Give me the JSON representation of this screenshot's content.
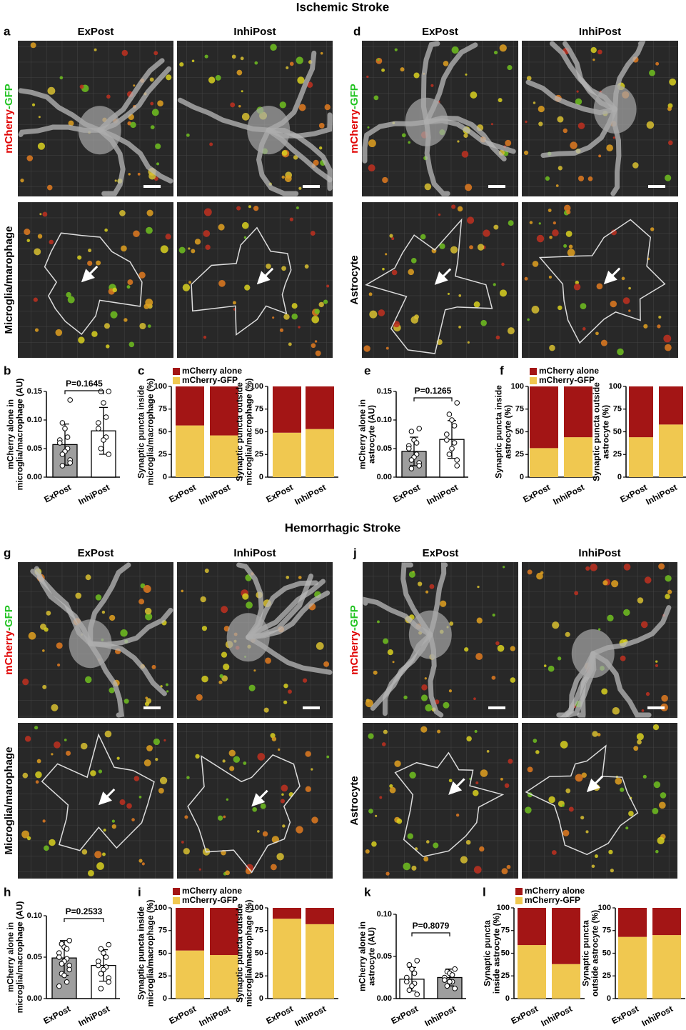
{
  "titles": [
    "Ischemic Stroke",
    "Hemorrhagic Stroke"
  ],
  "image_panels": [
    {
      "panel": "a",
      "columns": [
        "ExPost",
        "InhiPost"
      ],
      "rows": [
        [
          "mCherry",
          "-GFP"
        ],
        [
          "Microglia/marophage"
        ]
      ]
    },
    {
      "panel": "d",
      "columns": [
        "ExPost",
        "InhiPost"
      ],
      "rows": [
        [
          "mCherry",
          "-GFP"
        ],
        [
          "Astrocyte"
        ]
      ]
    },
    {
      "panel": "g",
      "columns": [
        "ExPost",
        "InhiPost"
      ],
      "rows": [
        [
          "mCherry",
          "-GFP"
        ],
        [
          "Microglia/marophage"
        ]
      ]
    },
    {
      "panel": "j",
      "columns": [
        "ExPost",
        "InhiPost"
      ],
      "rows": [
        [
          "mCherry",
          "-GFP"
        ],
        [
          "Astrocyte"
        ]
      ]
    }
  ],
  "chart_data": [
    {
      "type": "dot_bar",
      "panel": "b",
      "ylabel": [
        "mCherry alone in",
        "microglia/macrophage (AU)"
      ],
      "categories": [
        "ExPost",
        "InhiPost"
      ],
      "values": [
        0.057,
        0.081
      ],
      "errors": [
        0.036,
        0.041
      ],
      "colors": [
        "#9e9e9e",
        "#ffffff"
      ],
      "points": [
        [
          0.135,
          0.095,
          0.085,
          0.07,
          0.065,
          0.06,
          0.05,
          0.045,
          0.04,
          0.03,
          0.025,
          0.02
        ],
        [
          0.15,
          0.15,
          0.13,
          0.105,
          0.095,
          0.085,
          0.07,
          0.065,
          0.05,
          0.04
        ]
      ],
      "ylim": [
        0,
        0.15
      ],
      "yticks": [
        {
          "value": 0,
          "label": "0.00"
        },
        0.05,
        {
          "value": 0.1,
          "label": "0.10"
        },
        0.15
      ],
      "annotation": "P=0.1645"
    },
    {
      "type": "stacked_bar",
      "panel": "c",
      "ylabel": [
        "Synaptic puncta inside",
        "microglia/macrophage (%)"
      ],
      "categories": [
        "ExPost",
        "InhiPost"
      ],
      "series": [
        {
          "name": "mCherry alone",
          "color": "#a31515",
          "values": [
            43,
            54
          ]
        },
        {
          "name": "mCherry-GFP",
          "color": "#f0c850",
          "values": [
            57,
            46
          ]
        }
      ],
      "ylim": [
        0,
        100
      ],
      "yticks": [
        0,
        25,
        50,
        75,
        100
      ]
    },
    {
      "type": "stacked_bar",
      "ylabel": [
        "Synaptic puncta outside",
        "microglia/macrophage (%)"
      ],
      "categories": [
        "ExPost",
        "InhiPost"
      ],
      "series": [
        {
          "color": "#a31515",
          "values": [
            51,
            47
          ]
        },
        {
          "color": "#f0c850",
          "values": [
            49,
            53
          ]
        }
      ],
      "ylim": [
        0,
        100
      ],
      "yticks": [
        0,
        25,
        50,
        75,
        100
      ]
    },
    {
      "type": "dot_bar",
      "panel": "e",
      "ylabel": [
        "mCherry alone in",
        "astrocyte (AU)"
      ],
      "categories": [
        "ExPost",
        "InhiPost"
      ],
      "values": [
        0.045,
        0.066
      ],
      "errors": [
        0.025,
        0.033
      ],
      "colors": [
        "#9e9e9e",
        "#ffffff"
      ],
      "points": [
        [
          0.085,
          0.08,
          0.065,
          0.06,
          0.055,
          0.05,
          0.04,
          0.035,
          0.03,
          0.025,
          0.02,
          0.015
        ],
        [
          0.13,
          0.11,
          0.1,
          0.09,
          0.075,
          0.065,
          0.06,
          0.05,
          0.04,
          0.03,
          0.02
        ]
      ],
      "ylim": [
        0,
        0.15
      ],
      "yticks": [
        {
          "value": 0,
          "label": "0.00"
        },
        0.05,
        {
          "value": 0.1,
          "label": "0.10"
        },
        0.15
      ],
      "annotation": "P=0.1265"
    },
    {
      "type": "stacked_bar",
      "panel": "f",
      "ylabel": [
        "Synaptic puncta inside",
        "astrocyte (%)"
      ],
      "categories": [
        "ExPost",
        "InhiPost"
      ],
      "series": [
        {
          "name": "mCherry alone",
          "color": "#a31515",
          "values": [
            68,
            56
          ]
        },
        {
          "name": "mCherry-GFP",
          "color": "#f0c850",
          "values": [
            32,
            44
          ]
        }
      ],
      "ylim": [
        0,
        100
      ],
      "yticks": [
        0,
        25,
        50,
        75,
        100
      ]
    },
    {
      "type": "stacked_bar",
      "ylabel": [
        "Synaptic puncta outside",
        "astrocyte (%)"
      ],
      "categories": [
        "ExPost",
        "InhiPost"
      ],
      "series": [
        {
          "color": "#a31515",
          "values": [
            56,
            42
          ]
        },
        {
          "color": "#f0c850",
          "values": [
            44,
            58
          ]
        }
      ],
      "ylim": [
        0,
        100
      ],
      "yticks": [
        0,
        25,
        50,
        75,
        100
      ]
    },
    {
      "type": "dot_bar",
      "panel": "h",
      "ylabel": [
        "mCherry alone in",
        "microglia/macrophage (AU)"
      ],
      "categories": [
        "ExPost",
        "InhiPost"
      ],
      "values": [
        0.049,
        0.04
      ],
      "errors": [
        0.021,
        0.019
      ],
      "colors": [
        "#9e9e9e",
        "#ffffff"
      ],
      "points": [
        [
          0.07,
          0.066,
          0.062,
          0.06,
          0.055,
          0.05,
          0.048,
          0.045,
          0.042,
          0.04,
          0.035,
          0.03,
          0.028,
          0.02,
          0.015
        ],
        [
          0.065,
          0.06,
          0.055,
          0.05,
          0.045,
          0.04,
          0.038,
          0.035,
          0.03,
          0.025,
          0.02,
          0.012
        ]
      ],
      "ylim": [
        0,
        0.1
      ],
      "yticks": [
        {
          "value": 0,
          "label": "0.00"
        },
        0.05,
        {
          "value": 0.1,
          "label": "0.10"
        }
      ],
      "annotation": "P=0.2533"
    },
    {
      "type": "stacked_bar",
      "panel": "i",
      "ylabel": [
        "Synaptic puncta inside",
        "microglia/macrophage (%)"
      ],
      "categories": [
        "ExPost",
        "InhiPost"
      ],
      "series": [
        {
          "name": "mCherry alone",
          "color": "#a31515",
          "values": [
            47,
            52
          ]
        },
        {
          "name": "mCherry-GFP",
          "color": "#f0c850",
          "values": [
            53,
            48
          ]
        }
      ],
      "ylim": [
        0,
        100
      ],
      "yticks": [
        0,
        25,
        50,
        75,
        100
      ]
    },
    {
      "type": "stacked_bar",
      "ylabel": [
        "Synaptic puncta outside",
        "microglia/macrophage (%)"
      ],
      "categories": [
        "ExPost",
        "InhiPost"
      ],
      "series": [
        {
          "color": "#a31515",
          "values": [
            12,
            18
          ]
        },
        {
          "color": "#f0c850",
          "values": [
            88,
            82
          ]
        }
      ],
      "ylim": [
        0,
        100
      ],
      "yticks": [
        0,
        25,
        50,
        75,
        100
      ]
    },
    {
      "type": "dot_bar",
      "panel": "k",
      "ylabel": [
        "mCherry alone in",
        "astrocyte (AU)"
      ],
      "categories": [
        "ExPost",
        "InhiPost"
      ],
      "values": [
        0.023,
        0.025
      ],
      "errors": [
        0.014,
        0.01
      ],
      "colors": [
        "#ffffff",
        "#9e9e9e"
      ],
      "points": [
        [
          0.045,
          0.04,
          0.035,
          0.03,
          0.025,
          0.02,
          0.018,
          0.015,
          0.01,
          0.005
        ],
        [
          0.035,
          0.032,
          0.03,
          0.028,
          0.025,
          0.022,
          0.02,
          0.02,
          0.015,
          0.012
        ]
      ],
      "ylim": [
        0,
        0.1
      ],
      "yticks": [
        {
          "value": 0,
          "label": "0.00"
        },
        0.05,
        {
          "value": 0.1,
          "label": "0.10"
        }
      ],
      "annotation": "P=0.8079"
    },
    {
      "type": "stacked_bar",
      "panel": "l",
      "ylabel": [
        "Synaptic puncta",
        "inside astrocyte (%)"
      ],
      "categories": [
        "ExPost",
        "InhiPost"
      ],
      "series": [
        {
          "name": "mCherry alone",
          "color": "#a31515",
          "values": [
            41,
            62
          ]
        },
        {
          "name": "mCherry-GFP",
          "color": "#f0c850",
          "values": [
            59,
            38
          ]
        }
      ],
      "ylim": [
        0,
        100
      ],
      "yticks": [
        0,
        25,
        50,
        75,
        100
      ]
    },
    {
      "type": "stacked_bar",
      "ylabel": [
        "Synaptic puncta",
        "outside astrocyte (%)"
      ],
      "categories": [
        "ExPost",
        "InhiPost"
      ],
      "series": [
        {
          "color": "#a31515",
          "values": [
            32,
            30
          ]
        },
        {
          "color": "#f0c850",
          "values": [
            68,
            70
          ]
        }
      ],
      "ylim": [
        0,
        100
      ],
      "yticks": [
        0,
        25,
        50,
        75,
        100
      ]
    }
  ]
}
